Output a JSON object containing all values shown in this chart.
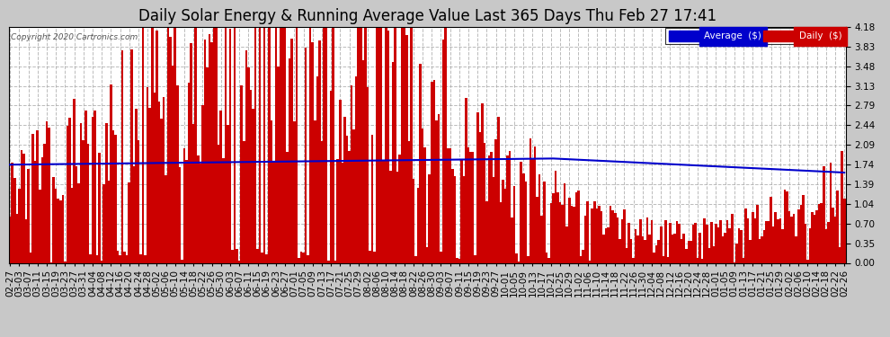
{
  "title": "Daily Solar Energy & Running Average Value Last 365 Days Thu Feb 27 17:41",
  "copyright": "Copyright 2020 Cartronics.com",
  "legend_avg_label": "Average  ($)",
  "legend_daily_label": "Daily  ($)",
  "legend_avg_color": "#0000cc",
  "legend_daily_color": "#cc0000",
  "bar_color": "#cc0000",
  "avg_line_color": "#0000cc",
  "grid_color": "#aaaaaa",
  "ylim": [
    0.0,
    4.18
  ],
  "yticks": [
    0.0,
    0.35,
    0.7,
    1.04,
    1.39,
    1.74,
    2.09,
    2.44,
    2.79,
    3.13,
    3.48,
    3.83,
    4.18
  ],
  "title_fontsize": 12,
  "tick_fontsize": 7.5,
  "xlabel_rotation": 90,
  "fig_facecolor": "#c8c8c8",
  "axes_facecolor": "#ffffff"
}
